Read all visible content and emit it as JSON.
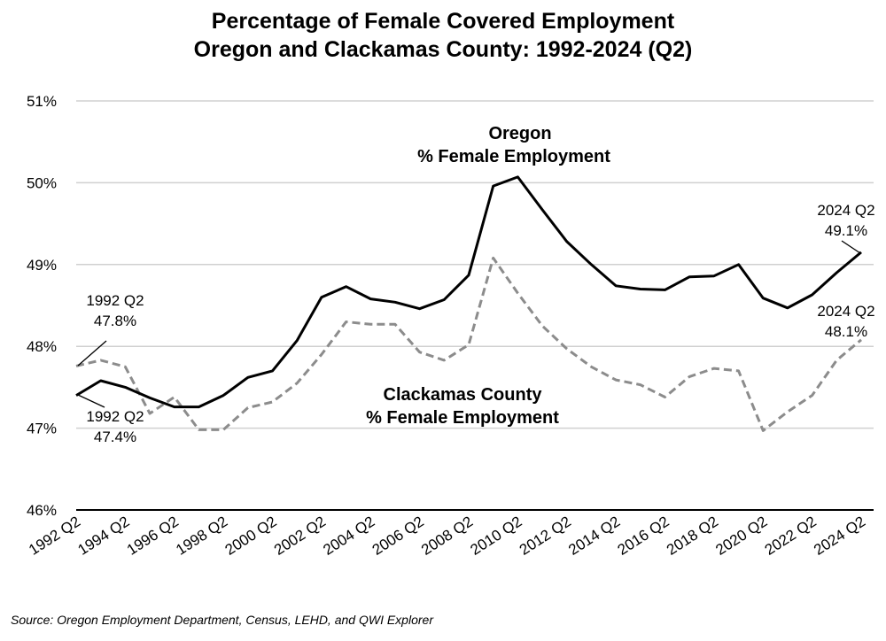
{
  "chart_data": {
    "type": "line",
    "title": [
      "Percentage of Female Covered Employment",
      "Oregon and Clackamas County: 1992-2024 (Q2)"
    ],
    "xlabel": "",
    "ylabel": "",
    "ylim": [
      46,
      51
    ],
    "yticks": [
      "46%",
      "47%",
      "48%",
      "49%",
      "50%",
      "51%"
    ],
    "grid": true,
    "x": [
      1992,
      1993,
      1994,
      1995,
      1996,
      1997,
      1998,
      1999,
      2000,
      2001,
      2002,
      2003,
      2004,
      2005,
      2006,
      2007,
      2008,
      2009,
      2010,
      2011,
      2012,
      2013,
      2014,
      2015,
      2016,
      2017,
      2018,
      2019,
      2020,
      2021,
      2022,
      2023,
      2024
    ],
    "xtick_labels": [
      "1992 Q2",
      "1994 Q2",
      "1996 Q2",
      "1998 Q2",
      "2000 Q2",
      "2002 Q2",
      "2004 Q2",
      "2006 Q2",
      "2008 Q2",
      "2010 Q2",
      "2012 Q2",
      "2014 Q2",
      "2016 Q2",
      "2018 Q2",
      "2020 Q2",
      "2022 Q2",
      "2024 Q2"
    ],
    "series": [
      {
        "name": "Oregon % Female Employment",
        "label_lines": [
          "Oregon",
          "% Female Employment"
        ],
        "color": "#000000",
        "style": "solid",
        "values": [
          47.4,
          47.58,
          47.5,
          47.37,
          47.26,
          47.26,
          47.4,
          47.62,
          47.7,
          48.07,
          48.6,
          48.73,
          48.58,
          48.54,
          48.46,
          48.57,
          48.87,
          49.96,
          50.07,
          49.67,
          49.28,
          49.0,
          48.74,
          48.7,
          48.69,
          48.85,
          48.86,
          49.0,
          48.59,
          48.47,
          48.63,
          48.9,
          49.15
        ]
      },
      {
        "name": "Clackamas County % Female Employment",
        "label_lines": [
          "Clackamas County",
          "% Female Employment"
        ],
        "color": "#8c8c8c",
        "style": "dashed",
        "values": [
          47.76,
          47.83,
          47.75,
          47.18,
          47.38,
          46.98,
          46.98,
          47.25,
          47.32,
          47.55,
          47.9,
          48.3,
          48.27,
          48.27,
          47.93,
          47.83,
          48.02,
          49.08,
          48.65,
          48.25,
          47.97,
          47.75,
          47.59,
          47.53,
          47.38,
          47.63,
          47.73,
          47.7,
          46.97,
          47.2,
          47.4,
          47.83,
          48.08
        ]
      }
    ],
    "annotations": [
      {
        "lines": [
          "1992 Q2",
          "47.8%"
        ]
      },
      {
        "lines": [
          "1992 Q2",
          "47.4%"
        ]
      },
      {
        "lines": [
          "2024 Q2",
          "49.1%"
        ]
      },
      {
        "lines": [
          "2024 Q2",
          "48.1%"
        ]
      }
    ]
  },
  "source": "Source: Oregon Employment Department, Census, LEHD, and QWI Explorer"
}
